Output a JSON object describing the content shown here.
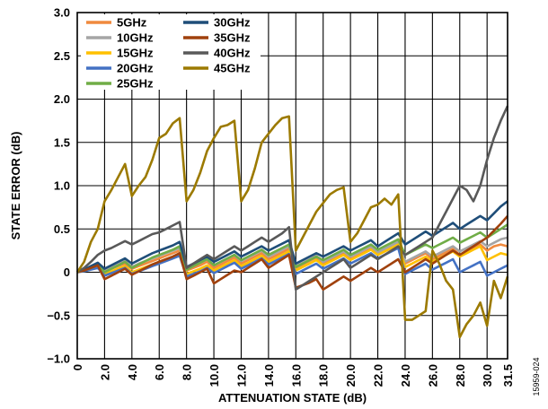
{
  "figure_id": "15959-024",
  "chart_data": {
    "type": "line",
    "xlabel": "ATTENUATION STATE (dB)",
    "ylabel": "STATE ERROR (dB)",
    "xlim": [
      0,
      31.5
    ],
    "ylim": [
      -1.0,
      3.0
    ],
    "xticks": [
      0,
      2.0,
      4.0,
      6.0,
      8.0,
      10.0,
      12.0,
      14.0,
      16.0,
      18.0,
      20.0,
      22.0,
      24.0,
      26.0,
      28.0,
      30.0,
      31.5
    ],
    "xtick_labels": [
      "0",
      "2.0",
      "4.0",
      "6.0",
      "8.0",
      "10.0",
      "12.0",
      "14.0",
      "16.0",
      "18.0",
      "20.0",
      "22.0",
      "24.0",
      "26.0",
      "28.0",
      "30.0",
      "31.5"
    ],
    "yticks": [
      -1.0,
      -0.5,
      0,
      0.5,
      1.0,
      1.5,
      2.0,
      2.5,
      3.0
    ],
    "ytick_labels": [
      "−1.0",
      "−0.5",
      "0",
      "0.5",
      "1.0",
      "1.5",
      "2.0",
      "2.5",
      "3.0"
    ],
    "grid": true,
    "legend_position": "top-left",
    "series": [
      {
        "name": "5GHz",
        "color": "#f08a3e",
        "x": [
          0,
          0.5,
          1,
          1.5,
          2,
          2.5,
          3,
          3.5,
          4,
          4.5,
          5,
          5.5,
          6,
          6.5,
          7,
          7.5,
          8,
          8.5,
          9,
          9.5,
          10,
          10.5,
          11,
          11.5,
          12,
          12.5,
          13,
          13.5,
          14,
          14.5,
          15,
          15.5,
          16,
          16.5,
          17,
          17.5,
          18,
          18.5,
          19,
          19.5,
          20,
          20.5,
          21,
          21.5,
          22,
          22.5,
          23,
          23.5,
          24,
          24.5,
          25,
          25.5,
          26,
          26.5,
          27,
          27.5,
          28,
          28.5,
          29,
          29.5,
          30,
          30.5,
          31,
          31.5
        ],
        "y": [
          0,
          0.02,
          0.05,
          0.08,
          0.02,
          0.04,
          0.07,
          0.1,
          0.04,
          0.07,
          0.1,
          0.13,
          0.16,
          0.19,
          0.22,
          0.25,
          0.02,
          0.05,
          0.08,
          0.12,
          0.05,
          0.09,
          0.13,
          0.17,
          0.1,
          0.14,
          0.18,
          0.22,
          0.15,
          0.19,
          0.23,
          0.27,
          0.05,
          0.09,
          0.13,
          0.17,
          0.1,
          0.14,
          0.18,
          0.22,
          0.15,
          0.19,
          0.23,
          0.27,
          0.2,
          0.24,
          0.28,
          0.32,
          0.1,
          0.14,
          0.18,
          0.22,
          0.15,
          0.19,
          0.23,
          0.27,
          0.2,
          0.24,
          0.28,
          0.32,
          0.25,
          0.3,
          0.32,
          0.3
        ]
      },
      {
        "name": "10GHz",
        "color": "#a5a5a5",
        "x": [
          0,
          0.5,
          1,
          1.5,
          2,
          2.5,
          3,
          3.5,
          4,
          4.5,
          5,
          5.5,
          6,
          6.5,
          7,
          7.5,
          8,
          8.5,
          9,
          9.5,
          10,
          10.5,
          11,
          11.5,
          12,
          12.5,
          13,
          13.5,
          14,
          14.5,
          15,
          15.5,
          16,
          16.5,
          17,
          17.5,
          18,
          18.5,
          19,
          19.5,
          20,
          20.5,
          21,
          21.5,
          22,
          22.5,
          23,
          23.5,
          24,
          24.5,
          25,
          25.5,
          26,
          26.5,
          27,
          27.5,
          28,
          28.5,
          29,
          29.5,
          30,
          30.5,
          31,
          31.5
        ],
        "y": [
          0,
          0.03,
          0.06,
          0.1,
          0.03,
          0.06,
          0.1,
          0.13,
          0.06,
          0.1,
          0.13,
          0.16,
          0.19,
          0.22,
          0.25,
          0.28,
          0.04,
          0.08,
          0.11,
          0.15,
          0.08,
          0.12,
          0.16,
          0.2,
          0.13,
          0.17,
          0.21,
          0.25,
          0.18,
          0.22,
          0.26,
          0.3,
          0.07,
          0.11,
          0.15,
          0.19,
          0.12,
          0.16,
          0.2,
          0.24,
          0.18,
          0.22,
          0.26,
          0.3,
          0.23,
          0.27,
          0.31,
          0.35,
          0.12,
          0.16,
          0.2,
          0.24,
          0.18,
          0.22,
          0.26,
          0.3,
          0.24,
          0.28,
          0.32,
          0.36,
          0.3,
          0.34,
          0.38,
          0.4
        ]
      },
      {
        "name": "15GHz",
        "color": "#ffc000",
        "x": [
          0,
          0.5,
          1,
          1.5,
          2,
          2.5,
          3,
          3.5,
          4,
          4.5,
          5,
          5.5,
          6,
          6.5,
          7,
          7.5,
          8,
          8.5,
          9,
          9.5,
          10,
          10.5,
          11,
          11.5,
          12,
          12.5,
          13,
          13.5,
          14,
          14.5,
          15,
          15.5,
          16,
          16.5,
          17,
          17.5,
          18,
          18.5,
          19,
          19.5,
          20,
          20.5,
          21,
          21.5,
          22,
          22.5,
          23,
          23.5,
          24,
          24.5,
          25,
          25.5,
          26,
          26.5,
          27,
          27.5,
          28,
          28.5,
          29,
          29.5,
          30,
          30.5,
          31,
          31.5
        ],
        "y": [
          0,
          0.02,
          0.04,
          0.06,
          -0.02,
          0.01,
          0.04,
          0.07,
          0.0,
          0.03,
          0.06,
          0.09,
          0.12,
          0.15,
          0.18,
          0.21,
          -0.02,
          0.01,
          0.04,
          0.08,
          0.02,
          0.06,
          0.1,
          0.14,
          0.07,
          0.11,
          0.15,
          0.19,
          0.12,
          0.16,
          0.2,
          0.24,
          0.02,
          0.06,
          0.1,
          0.14,
          0.08,
          0.12,
          0.16,
          0.2,
          0.14,
          0.18,
          0.22,
          0.26,
          0.2,
          0.24,
          0.28,
          0.32,
          0.06,
          0.1,
          0.14,
          0.18,
          0.12,
          0.16,
          0.2,
          0.24,
          0.18,
          0.22,
          0.26,
          0.3,
          0.14,
          0.18,
          0.22,
          0.2
        ]
      },
      {
        "name": "20GHz",
        "color": "#4472c4",
        "x": [
          0,
          0.5,
          1,
          1.5,
          2,
          2.5,
          3,
          3.5,
          4,
          4.5,
          5,
          5.5,
          6,
          6.5,
          7,
          7.5,
          8,
          8.5,
          9,
          9.5,
          10,
          10.5,
          11,
          11.5,
          12,
          12.5,
          13,
          13.5,
          14,
          14.5,
          15,
          15.5,
          16,
          16.5,
          17,
          17.5,
          18,
          18.5,
          19,
          19.5,
          20,
          20.5,
          21,
          21.5,
          22,
          22.5,
          23,
          23.5,
          24,
          24.5,
          25,
          25.5,
          26,
          26.5,
          27,
          27.5,
          28,
          28.5,
          29,
          29.5,
          30,
          30.5,
          31,
          31.5
        ],
        "y": [
          0,
          0.01,
          0.03,
          0.05,
          -0.04,
          -0.01,
          0.02,
          0.05,
          -0.02,
          0.01,
          0.04,
          0.07,
          0.1,
          0.13,
          0.16,
          0.19,
          -0.05,
          -0.02,
          0.01,
          0.05,
          -0.01,
          0.03,
          0.07,
          0.11,
          0.04,
          0.08,
          0.12,
          0.16,
          0.09,
          0.13,
          0.17,
          0.21,
          -0.02,
          0.02,
          0.06,
          0.1,
          0.04,
          0.08,
          0.12,
          0.16,
          0.1,
          0.14,
          0.18,
          0.22,
          0.16,
          0.2,
          0.24,
          0.28,
          -0.02,
          0.02,
          0.06,
          0.1,
          0.03,
          0.07,
          0.11,
          0.15,
          0.0,
          0.04,
          0.08,
          0.12,
          -0.04,
          0.0,
          0.04,
          0.08
        ]
      },
      {
        "name": "25GHz",
        "color": "#70ad47",
        "x": [
          0,
          0.5,
          1,
          1.5,
          2,
          2.5,
          3,
          3.5,
          4,
          4.5,
          5,
          5.5,
          6,
          6.5,
          7,
          7.5,
          8,
          8.5,
          9,
          9.5,
          10,
          10.5,
          11,
          11.5,
          12,
          12.5,
          13,
          13.5,
          14,
          14.5,
          15,
          15.5,
          16,
          16.5,
          17,
          17.5,
          18,
          18.5,
          19,
          19.5,
          20,
          20.5,
          21,
          21.5,
          22,
          22.5,
          23,
          23.5,
          24,
          24.5,
          25,
          25.5,
          26,
          26.5,
          27,
          27.5,
          28,
          28.5,
          29,
          29.5,
          30,
          30.5,
          31,
          31.5
        ],
        "y": [
          0,
          0.02,
          0.05,
          0.09,
          0.0,
          0.04,
          0.08,
          0.12,
          0.05,
          0.09,
          0.13,
          0.17,
          0.2,
          0.23,
          0.26,
          0.3,
          0.03,
          0.07,
          0.11,
          0.15,
          0.08,
          0.12,
          0.16,
          0.2,
          0.14,
          0.18,
          0.22,
          0.26,
          0.2,
          0.24,
          0.28,
          0.32,
          0.06,
          0.1,
          0.14,
          0.18,
          0.14,
          0.18,
          0.22,
          0.26,
          0.2,
          0.24,
          0.28,
          0.32,
          0.26,
          0.3,
          0.34,
          0.38,
          0.2,
          0.24,
          0.28,
          0.32,
          0.28,
          0.32,
          0.36,
          0.4,
          0.34,
          0.38,
          0.42,
          0.46,
          0.4,
          0.45,
          0.5,
          0.55
        ]
      },
      {
        "name": "30GHz",
        "color": "#1f4e79",
        "x": [
          0,
          0.5,
          1,
          1.5,
          2,
          2.5,
          3,
          3.5,
          4,
          4.5,
          5,
          5.5,
          6,
          6.5,
          7,
          7.5,
          8,
          8.5,
          9,
          9.5,
          10,
          10.5,
          11,
          11.5,
          12,
          12.5,
          13,
          13.5,
          14,
          14.5,
          15,
          15.5,
          16,
          16.5,
          17,
          17.5,
          18,
          18.5,
          19,
          19.5,
          20,
          20.5,
          21,
          21.5,
          22,
          22.5,
          23,
          23.5,
          24,
          24.5,
          25,
          25.5,
          26,
          26.5,
          27,
          27.5,
          28,
          28.5,
          29,
          29.5,
          30,
          30.5,
          31,
          31.5
        ],
        "y": [
          0,
          0.03,
          0.07,
          0.11,
          0.04,
          0.08,
          0.12,
          0.16,
          0.1,
          0.14,
          0.18,
          0.22,
          0.25,
          0.28,
          0.31,
          0.35,
          0.06,
          0.1,
          0.14,
          0.18,
          0.12,
          0.16,
          0.2,
          0.24,
          0.18,
          0.22,
          0.26,
          0.3,
          0.25,
          0.29,
          0.33,
          0.37,
          0.1,
          0.14,
          0.18,
          0.22,
          0.18,
          0.22,
          0.26,
          0.3,
          0.25,
          0.29,
          0.33,
          0.37,
          0.3,
          0.35,
          0.4,
          0.45,
          0.32,
          0.37,
          0.42,
          0.47,
          0.42,
          0.47,
          0.52,
          0.57,
          0.5,
          0.55,
          0.6,
          0.65,
          0.6,
          0.68,
          0.76,
          0.82
        ]
      },
      {
        "name": "35GHz",
        "color": "#a0410d",
        "x": [
          0,
          0.5,
          1,
          1.5,
          2,
          2.5,
          3,
          3.5,
          4,
          4.5,
          5,
          5.5,
          6,
          6.5,
          7,
          7.5,
          8,
          8.5,
          9,
          9.5,
          10,
          10.5,
          11,
          11.5,
          12,
          12.5,
          13,
          13.5,
          14,
          14.5,
          15,
          15.5,
          16,
          16.5,
          17,
          17.5,
          18,
          18.5,
          19,
          19.5,
          20,
          20.5,
          21,
          21.5,
          22,
          22.5,
          23,
          23.5,
          24,
          24.5,
          25,
          25.5,
          26,
          26.5,
          27,
          27.5,
          28,
          28.5,
          29,
          29.5,
          30,
          30.5,
          31,
          31.5
        ],
        "y": [
          0,
          0.02,
          0.05,
          0.08,
          -0.08,
          -0.04,
          0.0,
          0.04,
          -0.03,
          0.01,
          0.05,
          0.09,
          0.12,
          0.15,
          0.18,
          0.22,
          -0.08,
          -0.04,
          0.0,
          0.04,
          -0.13,
          -0.08,
          -0.03,
          0.02,
          0.0,
          0.05,
          0.1,
          0.15,
          0.05,
          0.1,
          0.15,
          0.2,
          -0.18,
          -0.15,
          -0.12,
          -0.08,
          -0.2,
          -0.15,
          -0.1,
          -0.05,
          -0.1,
          -0.05,
          0.0,
          0.05,
          0.0,
          0.05,
          0.1,
          0.15,
          0.0,
          0.05,
          0.1,
          0.15,
          0.1,
          0.15,
          0.2,
          0.25,
          0.2,
          0.25,
          0.3,
          0.35,
          0.4,
          0.48,
          0.56,
          0.65
        ]
      },
      {
        "name": "40GHz",
        "color": "#595959",
        "x": [
          0,
          0.5,
          1,
          1.5,
          2,
          2.5,
          3,
          3.5,
          4,
          4.5,
          5,
          5.5,
          6,
          6.5,
          7,
          7.5,
          8,
          8.5,
          9,
          9.5,
          10,
          10.5,
          11,
          11.5,
          12,
          12.5,
          13,
          13.5,
          14,
          14.5,
          15,
          15.5,
          16,
          16.5,
          17,
          17.5,
          18,
          18.5,
          19,
          19.5,
          20,
          20.5,
          21,
          21.5,
          22,
          22.5,
          23,
          23.5,
          24,
          24.5,
          25,
          25.5,
          26,
          26.5,
          27,
          27.5,
          28,
          28.5,
          29,
          29.5,
          30,
          30.5,
          31,
          31.5
        ],
        "y": [
          0,
          0.05,
          0.12,
          0.2,
          0.25,
          0.28,
          0.32,
          0.36,
          0.32,
          0.36,
          0.4,
          0.44,
          0.46,
          0.5,
          0.54,
          0.58,
          0.05,
          0.1,
          0.15,
          0.2,
          0.15,
          0.2,
          0.25,
          0.3,
          0.25,
          0.3,
          0.35,
          0.4,
          0.35,
          0.4,
          0.45,
          0.52,
          -0.2,
          -0.15,
          -0.1,
          -0.05,
          0.0,
          0.05,
          0.1,
          0.15,
          0.05,
          0.1,
          0.15,
          0.2,
          0.15,
          0.2,
          0.25,
          0.3,
          0.2,
          0.25,
          0.3,
          0.35,
          0.4,
          0.55,
          0.7,
          0.85,
          1.0,
          0.95,
          0.82,
          1.0,
          1.3,
          1.55,
          1.75,
          1.92
        ]
      },
      {
        "name": "45GHz",
        "color": "#9c7a00",
        "x": [
          0,
          0.5,
          1,
          1.5,
          2,
          2.5,
          3,
          3.5,
          4,
          4.5,
          5,
          5.5,
          6,
          6.5,
          7,
          7.5,
          8,
          8.5,
          9,
          9.5,
          10,
          10.5,
          11,
          11.5,
          12,
          12.5,
          13,
          13.5,
          14,
          14.5,
          15,
          15.5,
          16,
          16.5,
          17,
          17.5,
          18,
          18.5,
          19,
          19.5,
          20,
          20.5,
          21,
          21.5,
          22,
          22.5,
          23,
          23.5,
          24,
          24.5,
          25,
          25.5,
          26,
          26.5,
          27,
          27.5,
          28,
          28.5,
          29,
          29.5,
          30,
          30.5,
          31,
          31.5
        ],
        "y": [
          0,
          0.12,
          0.35,
          0.5,
          0.82,
          0.95,
          1.1,
          1.25,
          0.88,
          1.0,
          1.1,
          1.3,
          1.55,
          1.6,
          1.72,
          1.78,
          0.82,
          0.95,
          1.15,
          1.4,
          1.55,
          1.68,
          1.7,
          1.75,
          0.82,
          0.95,
          1.2,
          1.5,
          1.6,
          1.7,
          1.78,
          1.8,
          0.25,
          0.4,
          0.55,
          0.7,
          0.8,
          0.9,
          0.95,
          0.98,
          0.35,
          0.45,
          0.6,
          0.75,
          0.78,
          0.85,
          0.78,
          0.9,
          -0.55,
          -0.55,
          -0.5,
          -0.45,
          0.25,
          0.1,
          -0.1,
          -0.2,
          -0.75,
          -0.6,
          -0.5,
          -0.35,
          -0.62,
          -0.1,
          -0.3,
          -0.05
        ]
      }
    ]
  }
}
